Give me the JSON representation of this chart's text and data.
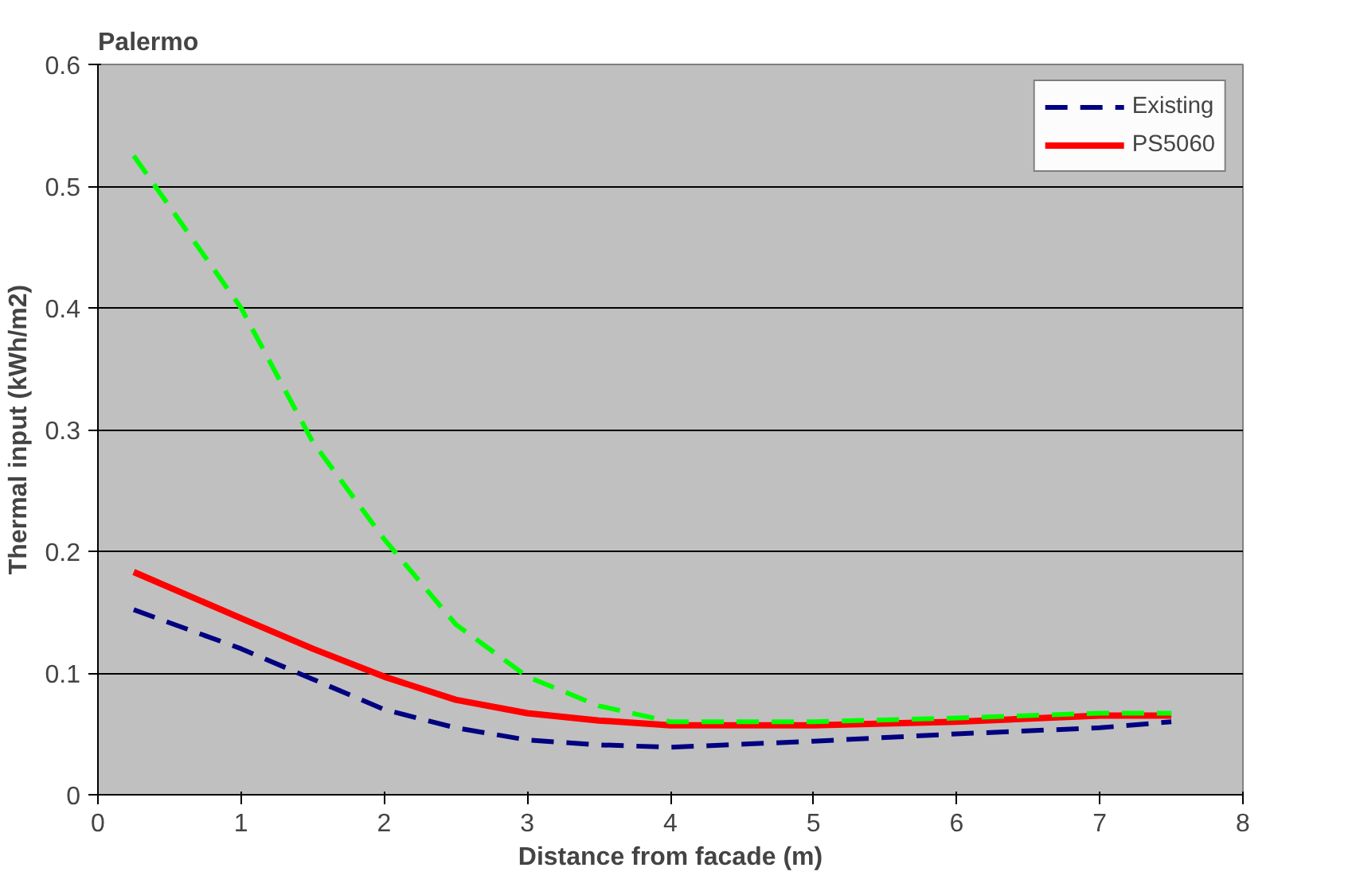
{
  "chart_data": {
    "type": "line",
    "title": "Palermo",
    "xlabel": "Distance from facade (m)",
    "ylabel": "Thermal input (kWh/m2)",
    "xlim": [
      0,
      8
    ],
    "xticks": [
      0,
      1,
      2,
      3,
      4,
      5,
      6,
      7,
      8
    ],
    "ylim": [
      0,
      0.6
    ],
    "yticks": [
      0,
      0.1,
      0.2,
      0.3,
      0.4,
      0.5,
      0.6
    ],
    "grid": "y",
    "legend": "top right",
    "series": [
      {
        "name": "Existing",
        "color": "#000080",
        "line_style": "dashed",
        "x": [
          0.25,
          1,
          1.5,
          2,
          2.5,
          3,
          3.5,
          4,
          5,
          6,
          7,
          7.5
        ],
        "values": [
          0.152,
          0.12,
          0.095,
          0.07,
          0.055,
          0.045,
          0.041,
          0.039,
          0.044,
          0.05,
          0.055,
          0.06
        ]
      },
      {
        "name": "PS5060",
        "color": "#ff0000",
        "line_style": "solid",
        "x": [
          0.25,
          1,
          1.5,
          2,
          2.5,
          3,
          3.5,
          4,
          5,
          6,
          7,
          7.5
        ],
        "values": [
          0.183,
          0.145,
          0.12,
          0.097,
          0.078,
          0.067,
          0.061,
          0.057,
          0.057,
          0.06,
          0.065,
          0.065
        ]
      },
      {
        "color": "#00ff00",
        "line_style": "dashed",
        "x": [
          0.25,
          1,
          1.5,
          2,
          2.5,
          3,
          3.5,
          4,
          5,
          6,
          7,
          7.5
        ],
        "values": [
          0.525,
          0.4,
          0.29,
          0.21,
          0.14,
          0.097,
          0.073,
          0.06,
          0.06,
          0.063,
          0.067,
          0.067
        ]
      }
    ]
  }
}
